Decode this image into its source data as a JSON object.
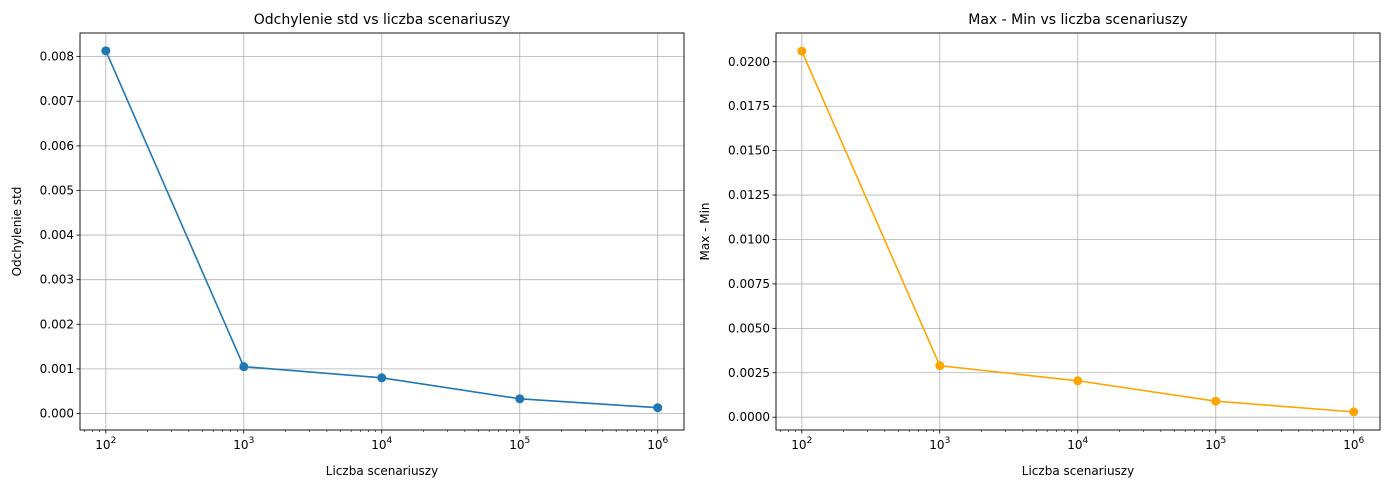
{
  "chart_data": [
    {
      "type": "line",
      "title": "Odchylenie std vs liczba scenariuszy",
      "xlabel": "Liczba scenariuszy",
      "ylabel": "Odchylenie std",
      "x_scale": "log",
      "grid": true,
      "color": "#1f77b4",
      "marker": "circle",
      "x": [
        100,
        1000,
        10000,
        100000,
        1000000
      ],
      "y": [
        0.00813,
        0.00105,
        0.0008,
        0.00033,
        0.00013
      ],
      "xlim": [
        65,
        1550000
      ],
      "ylim": [
        -0.00037,
        0.00853
      ],
      "x_ticks": [
        {
          "value": 100,
          "base": "10",
          "exp": "2"
        },
        {
          "value": 1000,
          "base": "10",
          "exp": "3"
        },
        {
          "value": 10000,
          "base": "10",
          "exp": "4"
        },
        {
          "value": 100000,
          "base": "10",
          "exp": "5"
        },
        {
          "value": 1000000,
          "base": "10",
          "exp": "6"
        }
      ],
      "y_ticks": [
        {
          "value": 0.0,
          "label": "0.000"
        },
        {
          "value": 0.001,
          "label": "0.001"
        },
        {
          "value": 0.002,
          "label": "0.002"
        },
        {
          "value": 0.003,
          "label": "0.003"
        },
        {
          "value": 0.004,
          "label": "0.004"
        },
        {
          "value": 0.005,
          "label": "0.005"
        },
        {
          "value": 0.006,
          "label": "0.006"
        },
        {
          "value": 0.007,
          "label": "0.007"
        },
        {
          "value": 0.008,
          "label": "0.008"
        }
      ]
    },
    {
      "type": "line",
      "title": "Max - Min vs liczba scenariuszy",
      "xlabel": "Liczba scenariuszy",
      "ylabel": "Max - Min",
      "x_scale": "log",
      "grid": true,
      "color": "#ffa500",
      "marker": "circle",
      "x": [
        100,
        1000,
        10000,
        100000,
        1000000
      ],
      "y": [
        0.0206,
        0.0029,
        0.00205,
        0.0009,
        0.0003
      ],
      "xlim": [
        65,
        1550000
      ],
      "ylim": [
        -0.00072,
        0.02162
      ],
      "x_ticks": [
        {
          "value": 100,
          "base": "10",
          "exp": "2"
        },
        {
          "value": 1000,
          "base": "10",
          "exp": "3"
        },
        {
          "value": 10000,
          "base": "10",
          "exp": "4"
        },
        {
          "value": 100000,
          "base": "10",
          "exp": "5"
        },
        {
          "value": 1000000,
          "base": "10",
          "exp": "6"
        }
      ],
      "y_ticks": [
        {
          "value": 0.0,
          "label": "0.0000"
        },
        {
          "value": 0.0025,
          "label": "0.0025"
        },
        {
          "value": 0.005,
          "label": "0.0050"
        },
        {
          "value": 0.0075,
          "label": "0.0075"
        },
        {
          "value": 0.01,
          "label": "0.0100"
        },
        {
          "value": 0.0125,
          "label": "0.0125"
        },
        {
          "value": 0.015,
          "label": "0.0150"
        },
        {
          "value": 0.0175,
          "label": "0.0175"
        },
        {
          "value": 0.02,
          "label": "0.0200"
        }
      ]
    }
  ]
}
